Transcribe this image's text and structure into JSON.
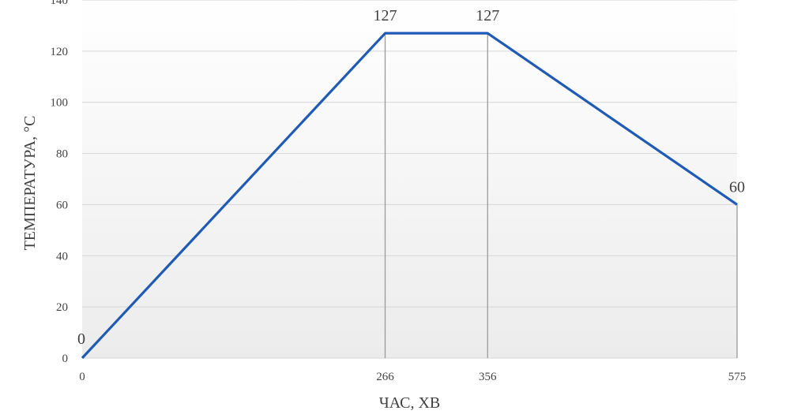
{
  "chart_data": {
    "type": "line",
    "title": "",
    "xlabel": "ЧАС, ХВ",
    "ylabel": "ТЕМПЕРАТУРА, °С",
    "x": [
      0,
      266,
      356,
      575
    ],
    "series": [
      {
        "values": [
          0,
          127,
          127,
          60
        ],
        "data_labels": [
          "0",
          "127",
          "127",
          "60"
        ]
      }
    ],
    "xticks": [
      "0",
      "266",
      "356",
      "575"
    ],
    "yticks": [
      "0",
      "20",
      "40",
      "60",
      "80",
      "100",
      "120",
      "140"
    ],
    "xlim": [
      0,
      575
    ],
    "ylim": [
      0,
      140
    ],
    "grid": true,
    "drop_lines": true,
    "legend": "none",
    "colors": {
      "line": "#1f5bb5",
      "grid": "#d6d6d6",
      "drop": "#9a9a9a",
      "bg_top": "#ffffff",
      "bg_bottom": "#ececec"
    }
  }
}
